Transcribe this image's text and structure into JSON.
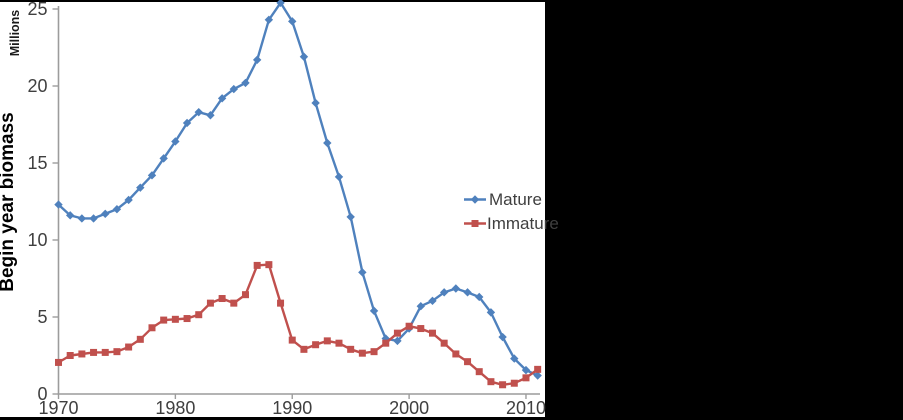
{
  "chart_data": {
    "type": "line",
    "title": "",
    "xlabel": "",
    "ylabel": "Begin year biomass",
    "y_units_label": "Millions",
    "x": [
      1970,
      1971,
      1972,
      1973,
      1974,
      1975,
      1976,
      1977,
      1978,
      1979,
      1980,
      1981,
      1982,
      1983,
      1984,
      1985,
      1986,
      1987,
      1988,
      1989,
      1990,
      1991,
      1992,
      1993,
      1994,
      1995,
      1996,
      1997,
      1998,
      1999,
      2000,
      2001,
      2002,
      2003,
      2004,
      2005,
      2006,
      2007,
      2008,
      2009,
      2010,
      2011
    ],
    "series": [
      {
        "name": "Mature",
        "color": "#4F81BD",
        "marker": "diamond",
        "values": [
          12.3,
          11.6,
          11.4,
          11.4,
          11.7,
          12.0,
          12.6,
          13.4,
          14.2,
          15.3,
          16.4,
          17.6,
          18.3,
          18.1,
          19.2,
          19.8,
          20.2,
          21.7,
          24.3,
          25.4,
          24.2,
          21.9,
          18.9,
          16.3,
          14.1,
          11.5,
          7.9,
          5.4,
          3.6,
          3.45,
          4.25,
          5.7,
          6.05,
          6.6,
          6.85,
          6.6,
          6.3,
          5.3,
          3.7,
          2.3,
          1.55,
          1.2
        ]
      },
      {
        "name": "Immature",
        "color": "#C0504D",
        "marker": "square",
        "values": [
          2.05,
          2.5,
          2.6,
          2.7,
          2.7,
          2.75,
          3.05,
          3.55,
          4.3,
          4.8,
          4.85,
          4.9,
          5.15,
          5.9,
          6.2,
          5.9,
          6.45,
          8.35,
          8.4,
          5.9,
          3.5,
          2.9,
          3.2,
          3.45,
          3.3,
          2.9,
          2.65,
          2.75,
          3.3,
          3.95,
          4.4,
          4.25,
          3.95,
          3.3,
          2.6,
          2.1,
          1.45,
          0.8,
          0.6,
          0.7,
          1.05,
          1.6
        ]
      }
    ],
    "xticks": [
      1970,
      1980,
      1990,
      2000,
      2010
    ],
    "yticks": [
      0,
      5,
      10,
      15,
      20,
      25
    ],
    "xlim": [
      1970,
      2011.2
    ],
    "ylim": [
      0,
      25
    ],
    "grid": false,
    "legend_position": "middle-right"
  },
  "colors": {
    "canvas_background": "#000000",
    "panel_background": "#ffffff",
    "axis_line": "#9c9c9c",
    "tick_text": "#3f3f3f"
  }
}
